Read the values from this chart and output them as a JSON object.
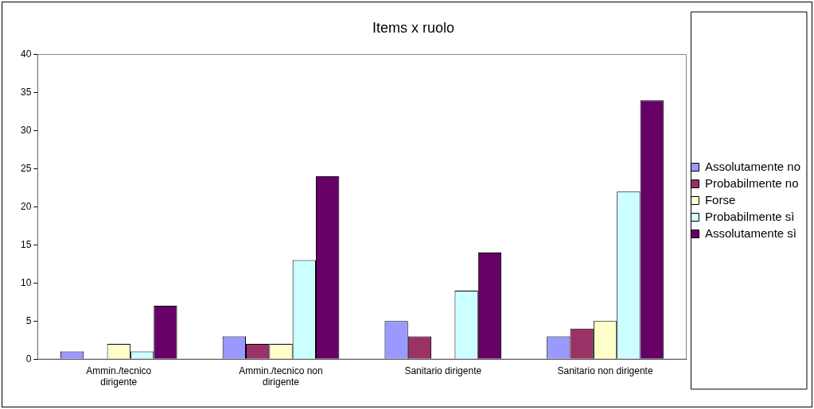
{
  "chart_data": {
    "type": "bar",
    "title": "Items x ruolo",
    "categories": [
      "Ammin./tecnico dirigente",
      "Ammin./tecnico non dirigente",
      "Sanitario dirigente",
      "Sanitario non dirigente"
    ],
    "series": [
      {
        "name": "Assolutamente no",
        "color": "#9999ff",
        "values": [
          1,
          3,
          5,
          3
        ]
      },
      {
        "name": "Probabilmente no",
        "color": "#993366",
        "values": [
          0,
          2,
          3,
          4
        ]
      },
      {
        "name": "Forse",
        "color": "#ffffcc",
        "values": [
          2,
          2,
          0,
          5
        ]
      },
      {
        "name": "Probabilmente sì",
        "color": "#ccffff",
        "values": [
          1,
          13,
          9,
          22
        ]
      },
      {
        "name": "Assolutamente sì",
        "color": "#660066",
        "values": [
          7,
          24,
          14,
          34
        ]
      }
    ],
    "ylim": [
      0,
      40
    ],
    "yticks": [
      0,
      5,
      10,
      15,
      20,
      25,
      30,
      35,
      40
    ],
    "grid": false,
    "legend": "right"
  }
}
